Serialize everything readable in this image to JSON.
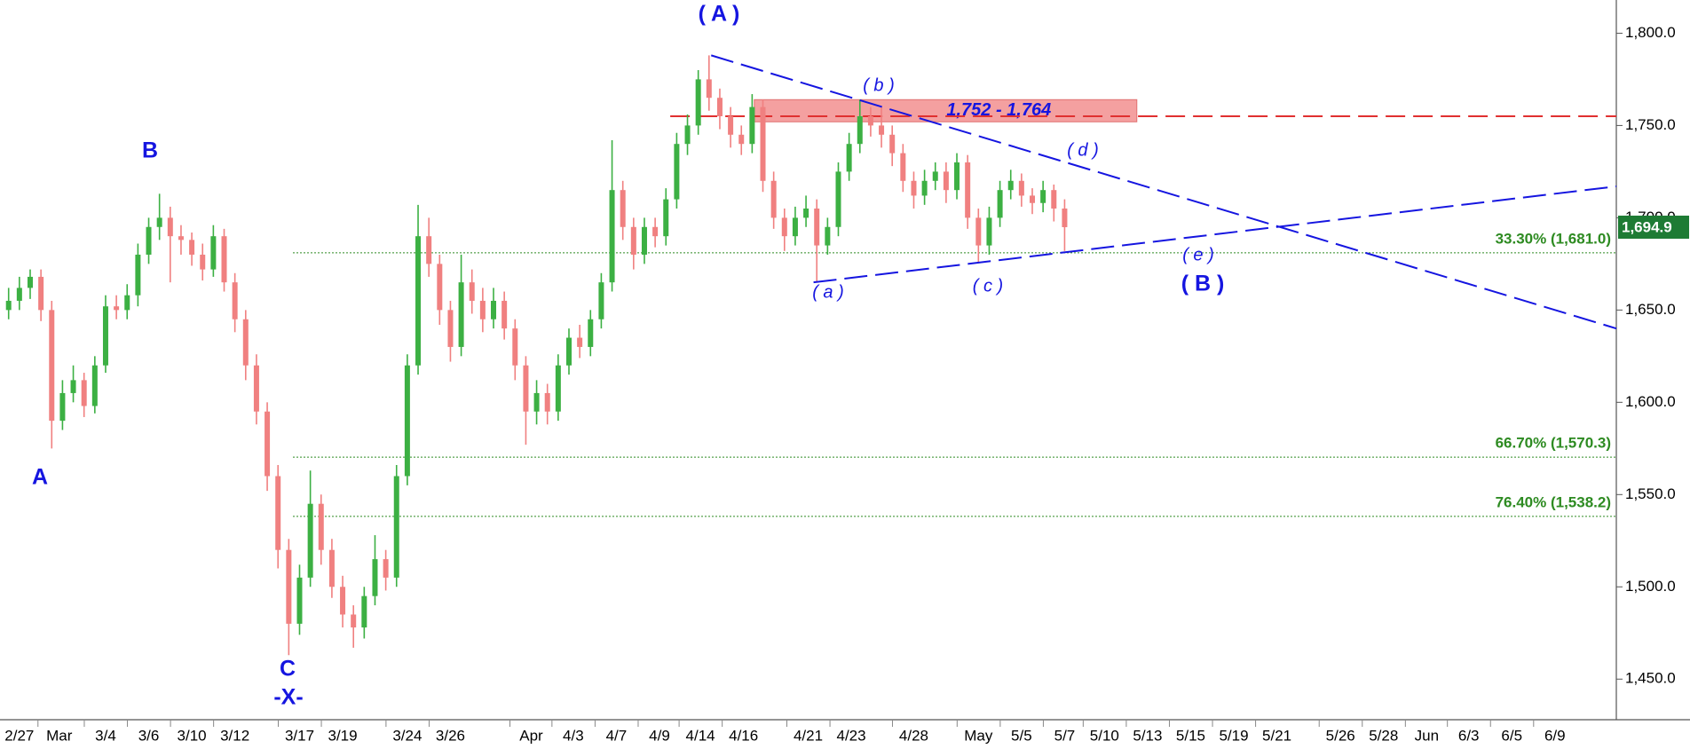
{
  "chart_data": {
    "type": "ohlc",
    "x": [
      -0.5,
      0,
      0.5,
      1,
      1.5,
      2,
      2.5,
      3,
      3.5,
      4,
      4.5,
      5,
      5.5,
      6,
      6.5,
      7,
      7.5,
      8,
      8.5,
      9,
      9.5,
      10,
      10.5,
      11,
      11.5,
      12,
      12.5,
      13,
      13.5,
      14,
      14.5,
      15,
      15.5,
      16,
      16.5,
      17,
      17.5,
      18,
      18.5,
      19,
      19.5,
      20,
      20.5,
      21,
      21.5,
      22,
      22.5,
      23,
      23.5,
      24,
      24.5,
      25,
      25.5,
      26,
      26.5,
      27,
      27.5,
      28,
      28.5,
      29,
      29.5,
      30,
      30.5,
      31,
      31.5,
      32,
      32.5,
      33,
      33.5,
      34,
      34.5,
      35,
      35.5,
      36,
      36.5,
      37,
      37.5,
      38,
      38.5,
      39,
      39.5,
      40,
      40.5,
      41,
      41.5,
      42,
      42.5,
      43,
      43.5,
      44,
      44.5,
      45,
      45.5,
      46,
      46.5,
      47,
      47.5,
      48,
      48.5
    ],
    "open": [
      1650,
      1655,
      1662,
      1668,
      1650,
      1590,
      1605,
      1612,
      1598,
      1620,
      1652,
      1650,
      1658,
      1680,
      1695,
      1700,
      1690,
      1688,
      1680,
      1672,
      1690,
      1665,
      1645,
      1620,
      1595,
      1560,
      1520,
      1480,
      1505,
      1545,
      1520,
      1500,
      1485,
      1478,
      1495,
      1515,
      1505,
      1560,
      1620,
      1690,
      1675,
      1650,
      1630,
      1665,
      1655,
      1645,
      1655,
      1640,
      1620,
      1595,
      1605,
      1595,
      1620,
      1635,
      1630,
      1645,
      1665,
      1715,
      1695,
      1680,
      1695,
      1690,
      1710,
      1740,
      1750,
      1775,
      1765,
      1755,
      1745,
      1740,
      1760,
      1720,
      1700,
      1690,
      1700,
      1705,
      1685,
      1695,
      1725,
      1740,
      1755,
      1750,
      1745,
      1735,
      1720,
      1712,
      1720,
      1725,
      1715,
      1730,
      1700,
      1685,
      1700,
      1715,
      1720,
      1712,
      1708,
      1715,
      1705
    ],
    "high": [
      1662,
      1668,
      1672,
      1672,
      1655,
      1612,
      1620,
      1616,
      1625,
      1658,
      1658,
      1664,
      1686,
      1700,
      1713,
      1706,
      1696,
      1692,
      1686,
      1696,
      1694,
      1670,
      1650,
      1626,
      1600,
      1566,
      1526,
      1512,
      1563,
      1550,
      1526,
      1506,
      1490,
      1500,
      1528,
      1520,
      1566,
      1626,
      1707,
      1700,
      1680,
      1655,
      1680,
      1672,
      1662,
      1662,
      1660,
      1645,
      1625,
      1612,
      1610,
      1626,
      1640,
      1642,
      1650,
      1670,
      1742,
      1720,
      1700,
      1700,
      1700,
      1716,
      1746,
      1756,
      1780,
      1788,
      1770,
      1760,
      1750,
      1767,
      1764,
      1725,
      1705,
      1706,
      1712,
      1710,
      1700,
      1730,
      1746,
      1764,
      1760,
      1760,
      1750,
      1740,
      1725,
      1726,
      1730,
      1730,
      1735,
      1734,
      1705,
      1706,
      1720,
      1726,
      1724,
      1716,
      1720,
      1718,
      1710
    ],
    "low": [
      1645,
      1650,
      1656,
      1644,
      1575,
      1585,
      1600,
      1592,
      1594,
      1616,
      1645,
      1645,
      1652,
      1675,
      1688,
      1665,
      1680,
      1674,
      1666,
      1668,
      1660,
      1638,
      1612,
      1588,
      1552,
      1510,
      1463,
      1474,
      1500,
      1512,
      1494,
      1478,
      1467,
      1472,
      1490,
      1498,
      1500,
      1555,
      1615,
      1668,
      1642,
      1622,
      1625,
      1648,
      1638,
      1640,
      1634,
      1612,
      1577,
      1588,
      1588,
      1590,
      1615,
      1624,
      1625,
      1640,
      1660,
      1688,
      1672,
      1675,
      1684,
      1685,
      1705,
      1734,
      1745,
      1758,
      1748,
      1738,
      1734,
      1735,
      1714,
      1694,
      1682,
      1685,
      1695,
      1665,
      1680,
      1690,
      1720,
      1735,
      1744,
      1738,
      1728,
      1714,
      1705,
      1707,
      1715,
      1708,
      1710,
      1694,
      1676,
      1680,
      1695,
      1710,
      1706,
      1702,
      1703,
      1698,
      1682
    ],
    "close": [
      1655,
      1662,
      1668,
      1650,
      1590,
      1605,
      1612,
      1598,
      1620,
      1652,
      1650,
      1658,
      1680,
      1695,
      1700,
      1690,
      1688,
      1680,
      1672,
      1690,
      1665,
      1645,
      1620,
      1595,
      1560,
      1520,
      1480,
      1505,
      1545,
      1520,
      1500,
      1485,
      1478,
      1495,
      1515,
      1505,
      1560,
      1620,
      1690,
      1675,
      1650,
      1630,
      1665,
      1655,
      1645,
      1655,
      1640,
      1620,
      1595,
      1605,
      1595,
      1620,
      1635,
      1630,
      1645,
      1665,
      1715,
      1695,
      1680,
      1695,
      1690,
      1710,
      1740,
      1750,
      1775,
      1765,
      1755,
      1745,
      1740,
      1760,
      1720,
      1700,
      1690,
      1700,
      1705,
      1685,
      1695,
      1725,
      1740,
      1755,
      1750,
      1745,
      1735,
      1720,
      1712,
      1720,
      1725,
      1715,
      1730,
      1700,
      1685,
      1700,
      1715,
      1720,
      1712,
      1708,
      1715,
      1705,
      1694.9
    ],
    "up_color": "#3cb043",
    "down_color": "#f08080",
    "xlim": [
      -0.9,
      74.1
    ],
    "ylim": [
      1428,
      1818
    ],
    "xticks": [
      {
        "value": 0,
        "label": "2/27"
      },
      {
        "value": 1.85,
        "label": "Mar"
      },
      {
        "value": 4,
        "label": "3/4"
      },
      {
        "value": 6,
        "label": "3/6"
      },
      {
        "value": 8,
        "label": "3/10"
      },
      {
        "value": 10,
        "label": "3/12"
      },
      {
        "value": 13,
        "label": "3/17"
      },
      {
        "value": 15,
        "label": "3/19"
      },
      {
        "value": 18,
        "label": "3/24"
      },
      {
        "value": 20,
        "label": "3/26"
      },
      {
        "value": 23.75,
        "label": "Apr"
      },
      {
        "value": 25.7,
        "label": "4/3"
      },
      {
        "value": 27.7,
        "label": "4/7"
      },
      {
        "value": 29.7,
        "label": "4/9"
      },
      {
        "value": 31.6,
        "label": "4/14"
      },
      {
        "value": 33.6,
        "label": "4/16"
      },
      {
        "value": 36.6,
        "label": "4/21"
      },
      {
        "value": 38.6,
        "label": "4/23"
      },
      {
        "value": 41.5,
        "label": "4/28"
      },
      {
        "value": 44.5,
        "label": "May"
      },
      {
        "value": 46.5,
        "label": "5/5"
      },
      {
        "value": 48.5,
        "label": "5/7"
      },
      {
        "value": 50.35,
        "label": "5/10"
      },
      {
        "value": 52.35,
        "label": "5/13"
      },
      {
        "value": 54.35,
        "label": "5/15"
      },
      {
        "value": 56.35,
        "label": "5/19"
      },
      {
        "value": 58.35,
        "label": "5/21"
      },
      {
        "value": 61.3,
        "label": "5/26"
      },
      {
        "value": 63.3,
        "label": "5/28"
      },
      {
        "value": 65.3,
        "label": "Jun"
      },
      {
        "value": 67.25,
        "label": "6/3"
      },
      {
        "value": 69.25,
        "label": "6/5"
      },
      {
        "value": 71.25,
        "label": "6/9"
      }
    ],
    "yticks": [
      {
        "value": 1450,
        "label": "1,450.0"
      },
      {
        "value": 1500,
        "label": "1,500.0"
      },
      {
        "value": 1550,
        "label": "1,550.0"
      },
      {
        "value": 1600,
        "label": "1,600.0"
      },
      {
        "value": 1650,
        "label": "1,650.0"
      },
      {
        "value": 1700,
        "label": "1,700.0"
      },
      {
        "value": 1750,
        "label": "1,750.0"
      },
      {
        "value": 1800,
        "label": "1,800.0"
      }
    ],
    "last_price": {
      "value": 1694.9,
      "label": "1,694.9",
      "color": "#1e7b34"
    },
    "fib_levels": [
      {
        "value": 1681.0,
        "label": "33.30% (1,681.0)"
      },
      {
        "value": 1570.3,
        "label": "66.70% (1,570.3)"
      },
      {
        "value": 1538.2,
        "label": "76.40% (1,538.2)"
      }
    ],
    "fib_color": "#2e8b22",
    "zone": {
      "low": 1752,
      "high": 1764,
      "label": "1,752 - 1,764",
      "x": [
        34.1,
        51.85
      ],
      "color": "#f4a0a0"
    },
    "resistance": {
      "value": 1755,
      "x": [
        30.2,
        74.1
      ],
      "color": "#e03030"
    },
    "trendlines": [
      {
        "x": [
          32.1,
          74.1
        ],
        "y": [
          1788,
          1640
        ]
      },
      {
        "x": [
          36.85,
          74.1
        ],
        "y": [
          1665,
          1717
        ]
      }
    ],
    "trend_color": "#1515e0",
    "wave_labels": [
      "( A )",
      "B",
      "A",
      "C",
      "-X-",
      "( b )",
      "( d )",
      "( a )",
      "( c )",
      "( e )",
      "( B )"
    ]
  }
}
